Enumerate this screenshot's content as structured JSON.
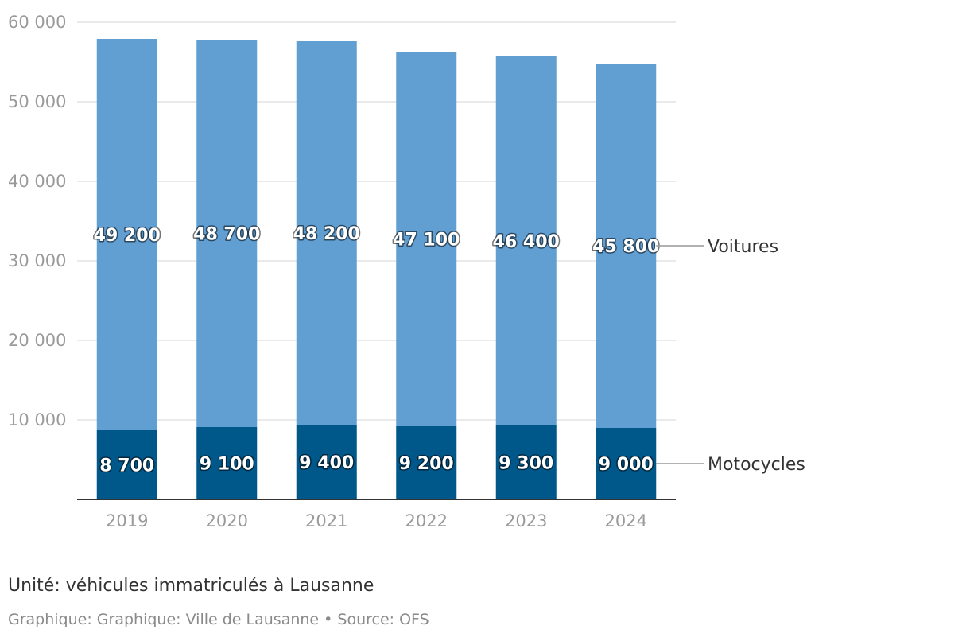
{
  "chart_data": {
    "type": "bar",
    "stacked": true,
    "categories": [
      "2019",
      "2020",
      "2021",
      "2022",
      "2023",
      "2024"
    ],
    "series": [
      {
        "name": "Motocycles",
        "values": [
          8700,
          9100,
          9400,
          9200,
          9300,
          9000
        ],
        "labels": [
          "8 700",
          "9 100",
          "9 400",
          "9 200",
          "9 300",
          "9 000"
        ],
        "color": "#00578a"
      },
      {
        "name": "Voitures",
        "values": [
          49200,
          48700,
          48200,
          47100,
          46400,
          45800
        ],
        "labels": [
          "49 200",
          "48 700",
          "48 200",
          "47 100",
          "46 400",
          "45 800"
        ],
        "color": "#619fd3"
      }
    ],
    "ylim": [
      0,
      60000
    ],
    "yticks": [
      10000,
      20000,
      30000,
      40000,
      50000,
      60000
    ],
    "ytick_labels": [
      "10 000",
      "20 000",
      "30 000",
      "40 000",
      "50 000",
      "60 000"
    ],
    "grid": true,
    "legend": "right-inline",
    "gridColor": "#e3e3e3",
    "axisColor": "#333333"
  },
  "footer": {
    "unit": "Unité: véhicules immatriculés à Lausanne",
    "source": "Graphique: Graphique: Ville de Lausanne • Source: OFS"
  }
}
